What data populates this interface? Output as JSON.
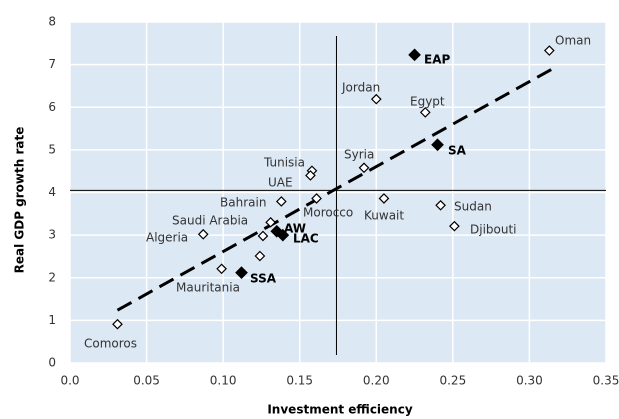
{
  "chart_data": {
    "type": "scatter",
    "xlabel": "Investment efficiency",
    "ylabel": "Real GDP growth rate",
    "labels": [
      "Oman",
      "EAP",
      "Jordan",
      "Egypt",
      "SA",
      "Syria",
      "Tunisia",
      "UAE",
      "Bahrain",
      "Morocco",
      "Kuwait",
      "Sudan",
      "Djibouti",
      "Saudi Arabia",
      "AW",
      "LAC",
      null,
      null,
      "Algeria",
      "Mauritania",
      "SSA",
      "Comoros"
    ],
    "x": [
      0.313,
      0.225,
      0.2,
      0.232,
      0.24,
      0.192,
      0.158,
      0.157,
      0.138,
      0.161,
      0.205,
      0.242,
      0.251,
      0.131,
      0.135,
      0.139,
      0.126,
      0.124,
      0.087,
      0.099,
      0.112,
      0.031
    ],
    "y": [
      7.33,
      7.23,
      6.19,
      5.88,
      5.12,
      4.58,
      4.51,
      4.4,
      3.79,
      3.86,
      3.86,
      3.7,
      3.21,
      3.3,
      3.09,
      3.0,
      2.98,
      2.51,
      3.02,
      2.21,
      2.12,
      0.91
    ],
    "filled": [
      false,
      true,
      false,
      false,
      true,
      false,
      false,
      false,
      false,
      false,
      false,
      false,
      false,
      false,
      true,
      true,
      false,
      false,
      false,
      false,
      true,
      false
    ],
    "open_color": "#ffffff",
    "filled_color": "#000000",
    "reference_lines": {
      "x": 0.174,
      "y": 4.05
    },
    "trend_line": {
      "x": [
        0.031,
        0.315
      ],
      "y": [
        1.24,
        6.9
      ]
    },
    "xlim": [
      0,
      0.35
    ],
    "ylim": [
      0,
      8
    ],
    "xticks": [
      {
        "value": 0,
        "label": "0.0"
      },
      0.05,
      {
        "value": 0.1,
        "label": "0.10"
      },
      0.15,
      {
        "value": 0.2,
        "label": "0.20"
      },
      0.25,
      {
        "value": 0.3,
        "label": "0.30"
      },
      0.35
    ],
    "yticks": [
      0,
      1,
      2,
      3,
      4,
      5,
      6,
      7,
      8
    ],
    "grid": true,
    "background": "#dce8f4"
  }
}
